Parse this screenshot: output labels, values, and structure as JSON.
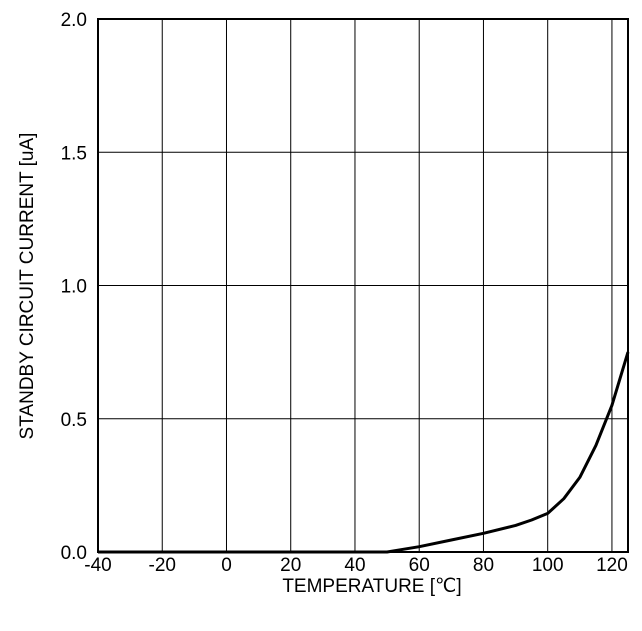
{
  "chart_data": {
    "type": "line",
    "title": "",
    "xlabel": "TEMPERATURE [℃]",
    "ylabel": "STANDBY CIRCUIT CURRENT [uA]",
    "xlim": [
      -40,
      125
    ],
    "ylim": [
      0,
      2.0
    ],
    "x_ticks": [
      -40,
      -20,
      0,
      20,
      40,
      60,
      80,
      100,
      120
    ],
    "y_ticks": [
      0.0,
      0.5,
      1.0,
      1.5,
      2.0
    ],
    "y_tick_labels": [
      "0.0",
      "0.5",
      "1.0",
      "1.5",
      "2.0"
    ],
    "grid": true,
    "series": [
      {
        "color": "#000000",
        "x": [
          -40,
          -20,
          0,
          20,
          40,
          50,
          55,
          60,
          70,
          80,
          90,
          95,
          100,
          105,
          110,
          115,
          120,
          125
        ],
        "y": [
          0,
          0,
          0,
          0,
          0,
          0,
          0.01,
          0.02,
          0.045,
          0.07,
          0.1,
          0.12,
          0.145,
          0.2,
          0.28,
          0.4,
          0.55,
          0.75
        ]
      }
    ]
  }
}
